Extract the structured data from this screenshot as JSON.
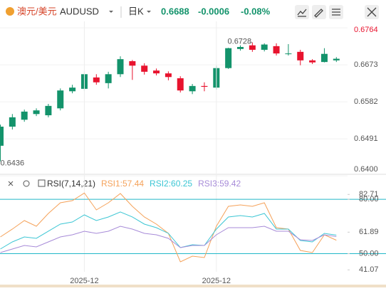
{
  "header": {
    "symbol_cn": "澳元/美元",
    "symbol": "AUDUSD",
    "period": "日K",
    "price": "0.6688",
    "change": "-0.0006",
    "change_pct": "-0.08%"
  },
  "chart_data": [
    {
      "type": "candlestick",
      "categories": [
        null,
        null,
        null,
        null,
        null,
        null,
        null,
        "2025-12",
        null,
        null,
        null,
        null,
        null,
        null,
        null,
        null,
        null,
        null,
        "2025-12",
        null,
        null,
        null,
        null,
        null,
        null,
        null,
        null,
        null,
        null
      ],
      "open": [
        0.6474,
        0.6521,
        0.6538,
        0.6552,
        0.6549,
        0.6566,
        0.6608,
        0.6614,
        0.6642,
        0.6628,
        0.665,
        0.6682,
        0.6671,
        0.6659,
        0.6652,
        0.664,
        0.6608,
        0.6621,
        0.6617,
        0.6665,
        0.6712,
        0.6721,
        0.671,
        0.6719,
        0.67,
        0.6705,
        0.6684,
        0.668,
        0.6684
      ],
      "close": [
        0.6521,
        0.6544,
        0.6558,
        0.6561,
        0.6572,
        0.661,
        0.6617,
        0.665,
        0.663,
        0.665,
        0.6687,
        0.6671,
        0.6656,
        0.6652,
        0.6643,
        0.661,
        0.6621,
        0.6619,
        0.6665,
        0.6714,
        0.6717,
        0.671,
        0.6723,
        0.6701,
        0.6701,
        0.6684,
        0.6679,
        0.67,
        0.6688
      ],
      "high": [
        0.6526,
        0.6552,
        0.6563,
        0.6566,
        0.6577,
        0.6615,
        0.6624,
        0.6657,
        0.665,
        0.6656,
        0.6694,
        0.6685,
        0.6677,
        0.6664,
        0.6657,
        0.6645,
        0.6626,
        0.663,
        0.6671,
        0.6715,
        0.6721,
        0.6728,
        0.6726,
        0.6726,
        0.6724,
        0.671,
        0.6687,
        0.6714,
        0.6692
      ],
      "low": [
        0.6436,
        0.6514,
        0.6533,
        0.6547,
        0.6544,
        0.6561,
        0.6603,
        0.6608,
        0.6624,
        0.6615,
        0.6643,
        0.6636,
        0.6649,
        0.6647,
        0.6635,
        0.6605,
        0.6601,
        0.6608,
        0.6612,
        0.6663,
        0.6708,
        0.6705,
        0.6706,
        0.6696,
        0.6696,
        0.6672,
        0.6675,
        0.6679,
        0.668
      ],
      "up_color": "#13936b",
      "down_color": "#e8132e",
      "ylim": [
        0.6395,
        0.678
      ],
      "yticks": [
        0.6764,
        0.6673,
        0.6582,
        0.6491,
        {
          "value": 0.64,
          "label": "0.6400"
        }
      ],
      "high_label": "0.6728",
      "low_label": "0.6436",
      "grid": true
    },
    {
      "type": "line",
      "title": "RSI(7,14,21)",
      "series": [
        {
          "name": "RSI1:57.44",
          "color": "#f5a25a",
          "values": [
            59.25,
            63.58,
            68.29,
            65.15,
            72.22,
            78.11,
            79.29,
            83.5,
            74.18,
            78.11,
            83.22,
            76.15,
            70.26,
            66.33,
            61.22,
            45.5,
            48.64,
            47.86,
            65.15,
            76.15,
            76.94,
            76.15,
            78.11,
            64.36,
            63.58,
            51.79,
            50.61,
            60.43,
            57.44
          ]
        },
        {
          "name": "RSI2:60.25",
          "color": "#3cc6d4",
          "values": [
            52.57,
            56.5,
            59.25,
            58.47,
            62.4,
            66.33,
            67.5,
            71.43,
            68.29,
            70.26,
            73.01,
            70.26,
            66.33,
            64.36,
            61.22,
            53.36,
            54.93,
            54.54,
            63.58,
            70.26,
            71.04,
            70.26,
            72.22,
            63.58,
            63.58,
            57.29,
            56.5,
            61.22,
            60.25
          ]
        },
        {
          "name": "RSI3:59.42",
          "color": "#a78bd8",
          "values": [
            50.61,
            52.57,
            54.54,
            53.75,
            56.5,
            59.25,
            60.43,
            62.4,
            61.22,
            62.4,
            65.15,
            63.58,
            61.22,
            60.43,
            58.47,
            53.36,
            54.54,
            54.54,
            60.43,
            64.36,
            64.36,
            64.36,
            65.15,
            62.4,
            62.4,
            57.68,
            57.29,
            60.43,
            59.42
          ]
        }
      ],
      "ylim": [
        40,
        84
      ],
      "yticks": [
        82.71,
        {
          "value": 80,
          "label": "80.00"
        },
        61.89,
        {
          "value": 50,
          "label": "50.00"
        },
        41.07
      ],
      "level_lines": [
        {
          "value": 80,
          "label": "80.00"
        },
        {
          "value": 50,
          "label": "50.00"
        }
      ],
      "level_color": "#21b8c8"
    }
  ]
}
